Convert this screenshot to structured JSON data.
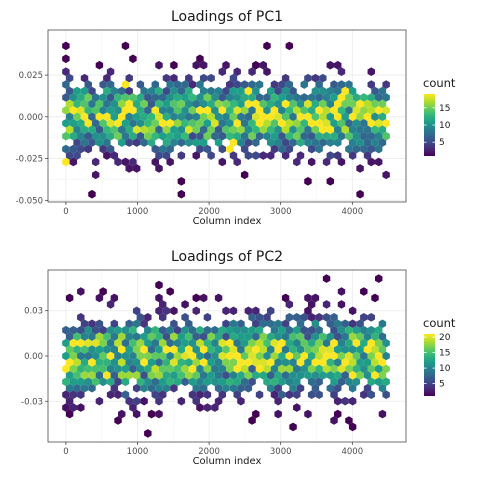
{
  "chart_data": [
    {
      "type": "hexbin",
      "title": "Loadings of PC1",
      "xlabel": "Column index",
      "ylabel": "",
      "xlim": [
        -250,
        4750
      ],
      "ylim": [
        -0.051,
        0.052
      ],
      "x_ticks": [
        0,
        1000,
        2000,
        3000,
        4000
      ],
      "x_tick_labels": [
        "0",
        "1000",
        "2000",
        "3000",
        "4000"
      ],
      "y_ticks": [
        -0.05,
        -0.025,
        0.0,
        0.025
      ],
      "y_tick_labels": [
        "-0.050",
        "-0.025",
        "0.000",
        "0.025"
      ],
      "grid": true,
      "legend": {
        "title": "count",
        "position": "right",
        "ticks": [
          5,
          10,
          15
        ],
        "tick_labels": [
          "5",
          "10",
          "15"
        ],
        "range": [
          1,
          19
        ]
      },
      "colorscale": [
        "#440154",
        "#482878",
        "#3e4989",
        "#31688e",
        "#26828e",
        "#1f9e89",
        "#35b779",
        "#6ece58",
        "#b5de2b",
        "#fde725"
      ],
      "data_summary": {
        "x_range": [
          0,
          4500
        ],
        "y_core_sd": 0.013,
        "y_min": -0.049,
        "y_max": 0.043,
        "max_count": 19
      }
    },
    {
      "type": "hexbin",
      "title": "Loadings of PC2",
      "xlabel": "Column index",
      "ylabel": "",
      "xlim": [
        -250,
        4750
      ],
      "ylim": [
        -0.057,
        0.057
      ],
      "x_ticks": [
        0,
        1000,
        2000,
        3000,
        4000
      ],
      "x_tick_labels": [
        "0",
        "1000",
        "2000",
        "3000",
        "4000"
      ],
      "y_ticks": [
        -0.03,
        0.0,
        0.03
      ],
      "y_tick_labels": [
        "-0.03",
        "0.00",
        "0.03"
      ],
      "grid": true,
      "legend": {
        "title": "count",
        "position": "right",
        "ticks": [
          5,
          10,
          15,
          20
        ],
        "tick_labels": [
          "5",
          "10",
          "15",
          "20"
        ],
        "range": [
          1,
          21
        ]
      },
      "colorscale": [
        "#440154",
        "#482878",
        "#3e4989",
        "#31688e",
        "#26828e",
        "#1f9e89",
        "#35b779",
        "#6ece58",
        "#b5de2b",
        "#fde725"
      ],
      "data_summary": {
        "x_range": [
          0,
          4500
        ],
        "y_core_sd": 0.016,
        "y_min": -0.052,
        "y_max": 0.052,
        "max_count": 21
      }
    }
  ]
}
